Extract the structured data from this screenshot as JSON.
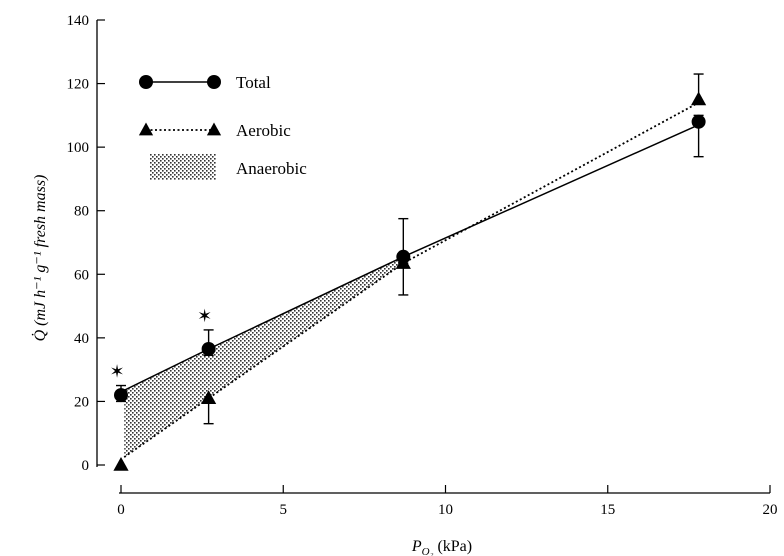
{
  "chart_data": {
    "type": "line",
    "x_axis": {
      "min": 0,
      "max": 20,
      "ticks": [
        0,
        5,
        10,
        15,
        20
      ],
      "label_var": "P",
      "label_sub": "O₂",
      "label_unit": " (kPa)"
    },
    "y_axis": {
      "min": 0,
      "max": 140,
      "ticks": [
        0,
        20,
        40,
        60,
        80,
        100,
        120,
        140
      ],
      "label": "Q̇ (mJ h⁻¹ g⁻¹ fresh mass)"
    },
    "grid": false,
    "legend": {
      "position": "top-left",
      "items": [
        {
          "name": "Total",
          "marker": "circle",
          "line": "solid"
        },
        {
          "name": "Aerobic",
          "marker": "triangle",
          "line": "dotted"
        },
        {
          "name": "Anaerobic",
          "marker": "stipple-fill"
        }
      ]
    },
    "series": [
      {
        "name": "Total",
        "marker": "circle",
        "line": "solid",
        "points": [
          {
            "x": 0,
            "y": 22,
            "err_low": 2,
            "err_high": 3,
            "star": true
          },
          {
            "x": 2.7,
            "y": 36.5,
            "err_low": 2,
            "err_high": 6,
            "star": true
          },
          {
            "x": 8.7,
            "y": 65.5,
            "err_low": 2,
            "err_high": 12
          },
          {
            "x": 17.8,
            "y": 108,
            "err_low": 11,
            "err_high": 2
          }
        ],
        "line_points": [
          [
            0.1,
            23.5
          ],
          [
            2.7,
            36.5
          ],
          [
            8.7,
            65.5
          ],
          [
            17.8,
            107
          ]
        ]
      },
      {
        "name": "Aerobic",
        "marker": "triangle",
        "line": "dotted",
        "points": [
          {
            "x": 0,
            "y": 0
          },
          {
            "x": 2.7,
            "y": 21,
            "err_low": 8,
            "err_high": 0
          },
          {
            "x": 8.7,
            "y": 63.5,
            "err_low": 10,
            "err_high": 0
          },
          {
            "x": 17.8,
            "y": 115,
            "err_low": 0,
            "err_high": 8
          }
        ],
        "line_points": [
          [
            0.1,
            2.5
          ],
          [
            2.7,
            21
          ],
          [
            8.7,
            63.5
          ],
          [
            17.8,
            114
          ]
        ]
      }
    ],
    "star_marker": "✶"
  }
}
